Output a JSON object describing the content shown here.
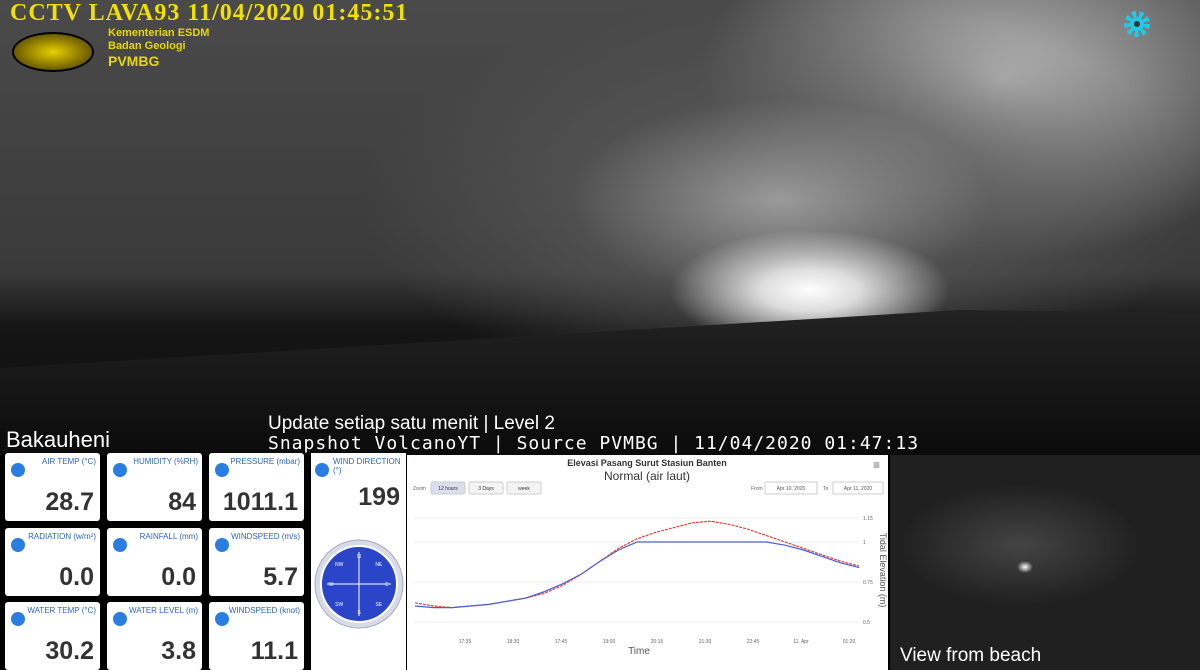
{
  "header": {
    "title": "CCTV LAVA93 11/04/2020 01:45:51",
    "org_lines": [
      "Kementerian ESDM",
      "Badan Geologi",
      "PVMBG"
    ]
  },
  "overlay": {
    "update": "Update setiap satu menit | Level 2",
    "snapshot": "Snapshot VolcanoYT | Source PVMBG | 11/04/2020 01:47:13",
    "location": "Bakauheni",
    "beach": "View from beach"
  },
  "widgets": [
    {
      "label": "AIR TEMP (°C)",
      "value": "28.7"
    },
    {
      "label": "HUMIDITY (%RH)",
      "value": "84"
    },
    {
      "label": "PRESSURE (mbar)",
      "value": "1011.1"
    },
    {
      "label": "RADIATION (w/m²)",
      "value": "0.0"
    },
    {
      "label": "RAINFALL (mm)",
      "value": "0.0"
    },
    {
      "label": "WINDSPEED (m/s)",
      "value": "5.7"
    },
    {
      "label": "WATER TEMP (°C)",
      "value": "30.2"
    },
    {
      "label": "WATER LEVEL (m)",
      "value": "3.8"
    },
    {
      "label": "WINDSPEED (knot)",
      "value": "11.1"
    }
  ],
  "wind": {
    "label": "WIND DIRECTION (°)",
    "value": "199",
    "compass": [
      "N",
      "NE",
      "E",
      "SE",
      "S",
      "SW",
      "W",
      "NW"
    ]
  },
  "tide_chart": {
    "title": "Elevasi Pasang Surut Stasiun Banten",
    "subtitle": "Normal (air laut)",
    "zoom_label": "Zoom",
    "zoom_buttons": [
      "12 hours",
      "3 Days",
      "week"
    ],
    "from_label": "From",
    "from": "Apr 10, 2020",
    "to_label": "To",
    "to": "Apr 11, 2020",
    "x_label": "Time",
    "y_label": "Tidal Elevation (m)",
    "xtick_labels": [
      "17:35",
      "18:30",
      "17:45",
      "19:00",
      "20:15",
      "21:30",
      "22:45",
      "11. Apr",
      "01:20"
    ],
    "ylim": [
      0.45,
      1.2
    ],
    "yticks": [
      0.5,
      0.75,
      1,
      1.15
    ],
    "series": [
      {
        "color": "#e8413c",
        "values": [
          0.62,
          0.6,
          0.59,
          0.6,
          0.61,
          0.63,
          0.65,
          0.68,
          0.73,
          0.8,
          0.88,
          0.96,
          1.02,
          1.06,
          1.09,
          1.12,
          1.13,
          1.11,
          1.08,
          1.04,
          1.0,
          0.96,
          0.92,
          0.88,
          0.85
        ]
      },
      {
        "color": "#4a5fd0",
        "values": [
          0.6,
          0.59,
          0.59,
          0.6,
          0.61,
          0.63,
          0.65,
          0.69,
          0.74,
          0.8,
          0.88,
          0.95,
          1.0,
          1.0,
          1.0,
          1.0,
          1.0,
          1.0,
          1.0,
          1.0,
          0.98,
          0.95,
          0.91,
          0.87,
          0.84
        ]
      }
    ]
  }
}
